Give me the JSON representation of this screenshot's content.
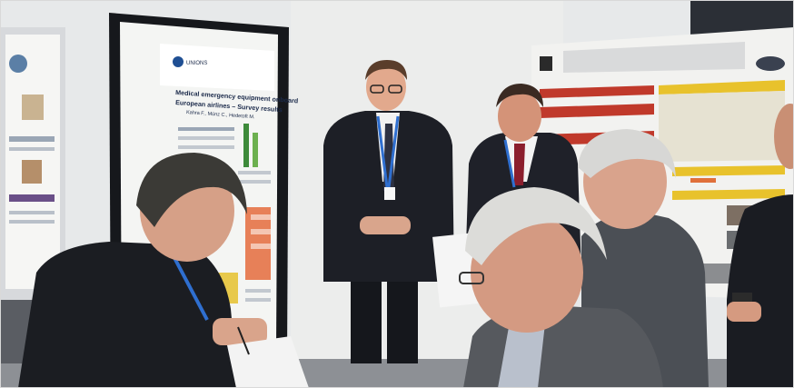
{
  "poster_left": {
    "logo_text": "UNIONS",
    "title_line1": "Medical emergency equipment onboard",
    "title_line2": "European airlines – Survey results",
    "authors": "Kahra F., Münz C., Hedetoft M."
  },
  "colors": {
    "sky_wall": "#e9ecef",
    "poster_red": "#c0392b",
    "poster_yellow": "#e8c22c",
    "suit_dark": "#1d1f26",
    "lanyard_blue": "#2f6fd0"
  }
}
